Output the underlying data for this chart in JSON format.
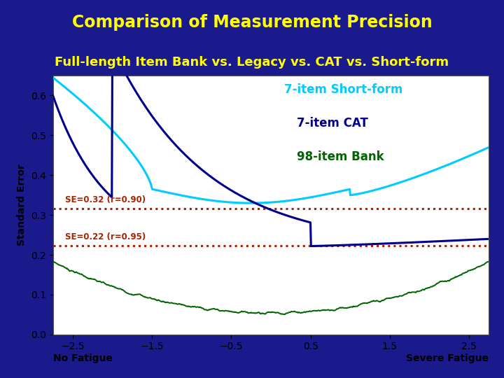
{
  "title": "Comparison of Measurement Precision",
  "subtitle": "Full-length Item Bank vs. Legacy vs. CAT vs. Short-form",
  "title_color": "#FFFF00",
  "subtitle_color": "#FFFF00",
  "header_bg": "#1a1a8c",
  "plot_bg": "#ffffff",
  "fig_bg": "#1a1a8c",
  "xlabel_left": "No Fatigue",
  "xlabel_right": "Severe Fatigue",
  "ylabel": "Standard Error",
  "xlim": [
    -2.75,
    2.75
  ],
  "ylim": [
    0,
    0.65
  ],
  "yticks": [
    0,
    0.1,
    0.2,
    0.3,
    0.4,
    0.5,
    0.6
  ],
  "xticks": [
    -2.5,
    -1.5,
    -0.5,
    0.5,
    1.5,
    2.5
  ],
  "se_090": 0.3162,
  "se_095": 0.2236,
  "se_090_label": "SE=0.32 (r=0.90)",
  "se_095_label": "SE=0.22 (r=0.95)",
  "legend_shortform": "7-item Short-form",
  "legend_cat": "7-item CAT",
  "legend_bank": "98-item Bank",
  "color_shortform": "#00ccff",
  "color_cat": "#00008b",
  "color_bank": "#006400",
  "color_se": "#aa2200",
  "title_fontsize": 17,
  "subtitle_fontsize": 13
}
